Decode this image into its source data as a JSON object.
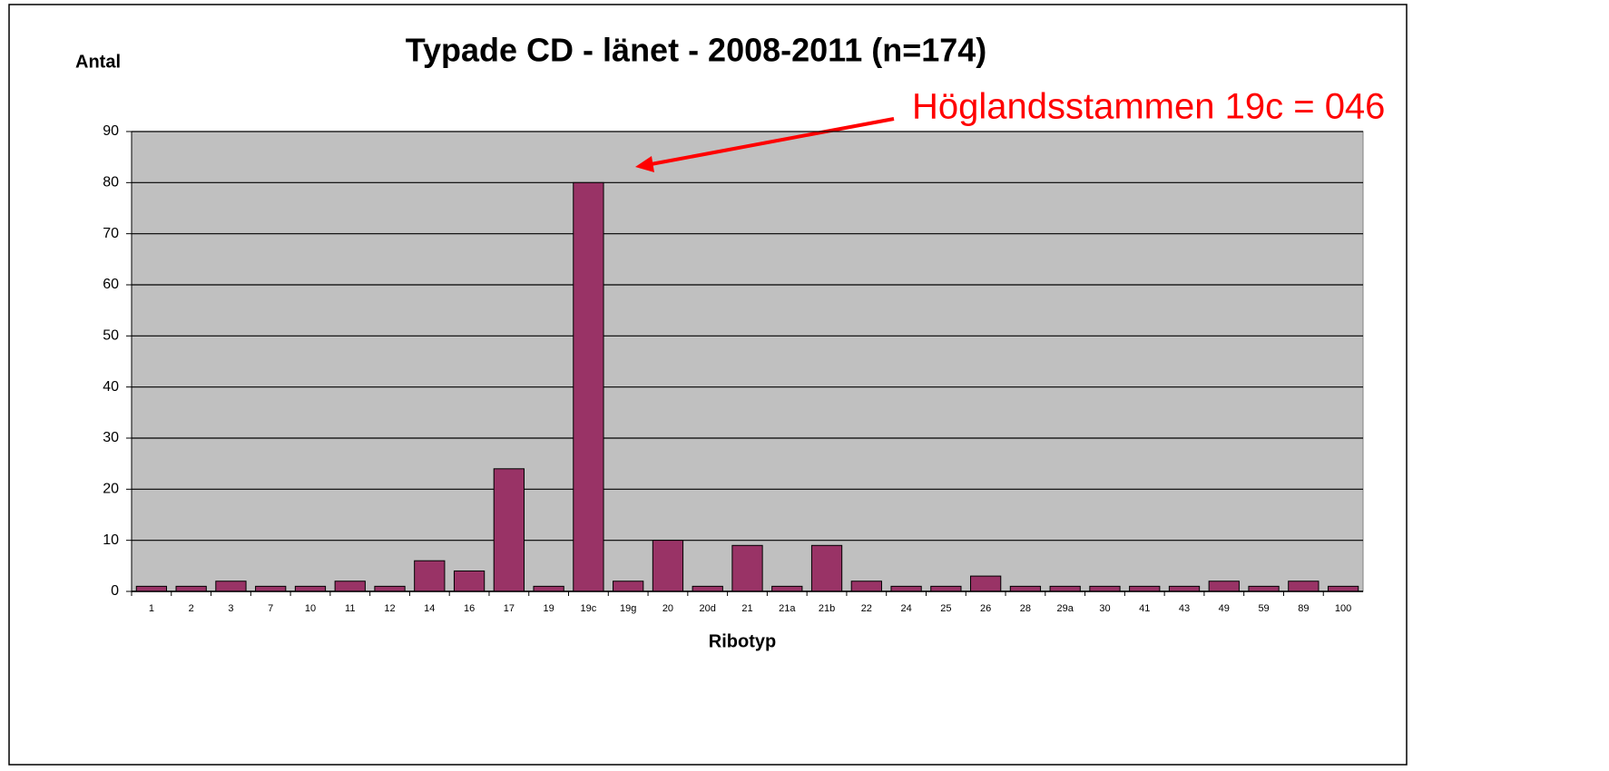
{
  "chart_data": {
    "type": "bar",
    "title": "Typade CD - länet - 2008-2011 (n=174)",
    "y_label": "Antal",
    "x_label": "Ribotyp",
    "annotation": "Höglandsstammen 19c = 046",
    "categories": [
      "1",
      "2",
      "3",
      "7",
      "10",
      "11",
      "12",
      "14",
      "16",
      "17",
      "19",
      "19c",
      "19g",
      "20",
      "20d",
      "21",
      "21a",
      "21b",
      "22",
      "24",
      "25",
      "26",
      "28",
      "29a",
      "30",
      "41",
      "43",
      "49",
      "59",
      "89",
      "100"
    ],
    "values": [
      1,
      1,
      2,
      1,
      1,
      2,
      1,
      6,
      4,
      24,
      1,
      80,
      2,
      10,
      1,
      9,
      1,
      9,
      2,
      1,
      1,
      3,
      1,
      1,
      1,
      1,
      1,
      2,
      1,
      2,
      1
    ],
    "color": "#993366",
    "ylim": [
      0,
      90
    ],
    "yticks": [
      0,
      10,
      20,
      30,
      40,
      50,
      60,
      70,
      80,
      90
    ],
    "grid": true
  }
}
